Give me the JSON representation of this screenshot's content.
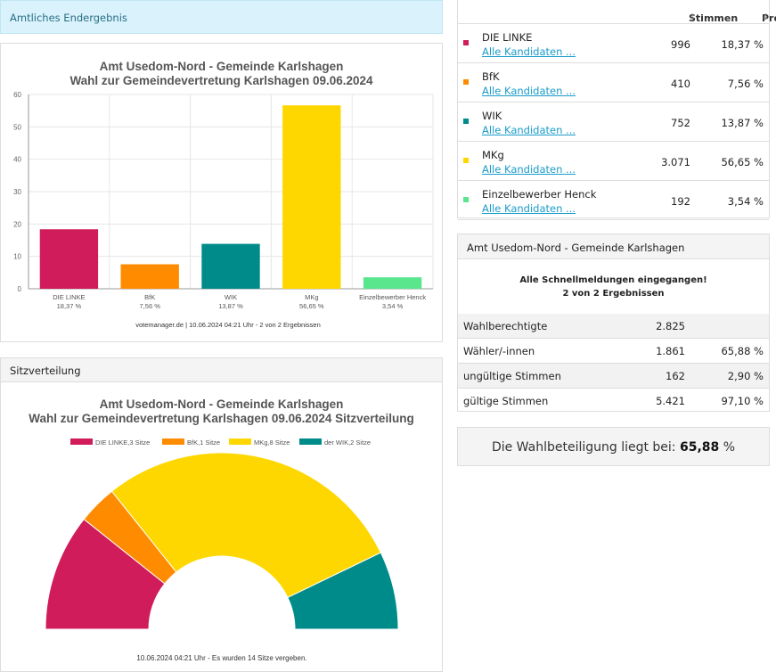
{
  "banner": "Amtliches Endergebnis",
  "bar_chart": {
    "title1": "Amt Usedom-Nord - Gemeinde Karlshagen",
    "title2": "Wahl zur Gemeindevertretung Karlshagen 09.06.2024",
    "source": "votemanager.de | 10.06.2024 04:21 Uhr - 2 von 2 Ergebnissen"
  },
  "seat_panel": {
    "header": "Sitzverteilung",
    "title1": "Amt Usedom-Nord - Gemeinde Karlshagen",
    "title2": "Wahl zur Gemeindevertretung Karlshagen 09.06.2024 Sitzverteilung",
    "footer": "10.06.2024 04:21 Uhr - Es wurden 14 Sitze vergeben."
  },
  "results_table": {
    "col_votes": "Stimmen",
    "col_percent": "Prozent",
    "sort_icon": "↓",
    "link_label": "Alle Kandidaten ...",
    "rows": [
      {
        "name": "DIE LINKE",
        "votes": "996",
        "percent": "18,37 %",
        "color": "#d01c5b"
      },
      {
        "name": "BfK",
        "votes": "410",
        "percent": "7,56 %",
        "color": "#ff8c00"
      },
      {
        "name": "WIK",
        "votes": "752",
        "percent": "13,87 %",
        "color": "#008b8b"
      },
      {
        "name": "MKg",
        "votes": "3.071",
        "percent": "56,65 %",
        "color": "#ffd700"
      },
      {
        "name": "Einzelbewerber Henck",
        "votes": "192",
        "percent": "3,54 %",
        "color": "#5ae68c"
      }
    ]
  },
  "summary": {
    "header": "Amt Usedom-Nord - Gemeinde Karlshagen",
    "msg1": "Alle Schnellmeldungen eingegangen!",
    "msg2": "2 von 2 Ergebnissen",
    "rows": [
      {
        "label": "Wahlberechtigte",
        "value": "2.825",
        "percent": ""
      },
      {
        "label": "Wähler/-innen",
        "value": "1.861",
        "percent": "65,88 %"
      },
      {
        "label": "ungültige Stimmen",
        "value": "162",
        "percent": "2,90 %"
      },
      {
        "label": "gültige Stimmen",
        "value": "5.421",
        "percent": "97,10 %"
      }
    ]
  },
  "turnout": {
    "label": "Die Wahlbeteiligung liegt bei:",
    "value": "65,88",
    "unit": "%"
  },
  "chart_data": [
    {
      "type": "bar",
      "categories": [
        "DIE LINKE",
        "BfK",
        "WIK",
        "MKg",
        "Einzelbewerber Henck"
      ],
      "category_sublabels": [
        "18,37 %",
        "7,56 %",
        "13,87 %",
        "56,65 %",
        "3,54 %"
      ],
      "values": [
        18.37,
        7.56,
        13.87,
        56.65,
        3.54
      ],
      "colors": [
        "#d01c5b",
        "#ff8c00",
        "#008b8b",
        "#ffd700",
        "#5ae68c"
      ],
      "ylim": [
        0,
        60
      ],
      "yticks": [
        "0",
        "10",
        "20",
        "30",
        "40",
        "50",
        "60"
      ],
      "grid": true
    },
    {
      "type": "pie",
      "variant": "semicircle",
      "legend_position": "top",
      "legend": [
        "DIE LINKE,3 Sitze",
        "BfK,1 Sitze",
        "MKg,8 Sitze",
        "der WIK,2 Sitze"
      ],
      "categories": [
        "DIE LINKE",
        "BfK",
        "MKg",
        "der WIK"
      ],
      "values": [
        3,
        1,
        8,
        2
      ],
      "colors": [
        "#d01c5b",
        "#ff8c00",
        "#ffd700",
        "#008b8b"
      ]
    }
  ]
}
